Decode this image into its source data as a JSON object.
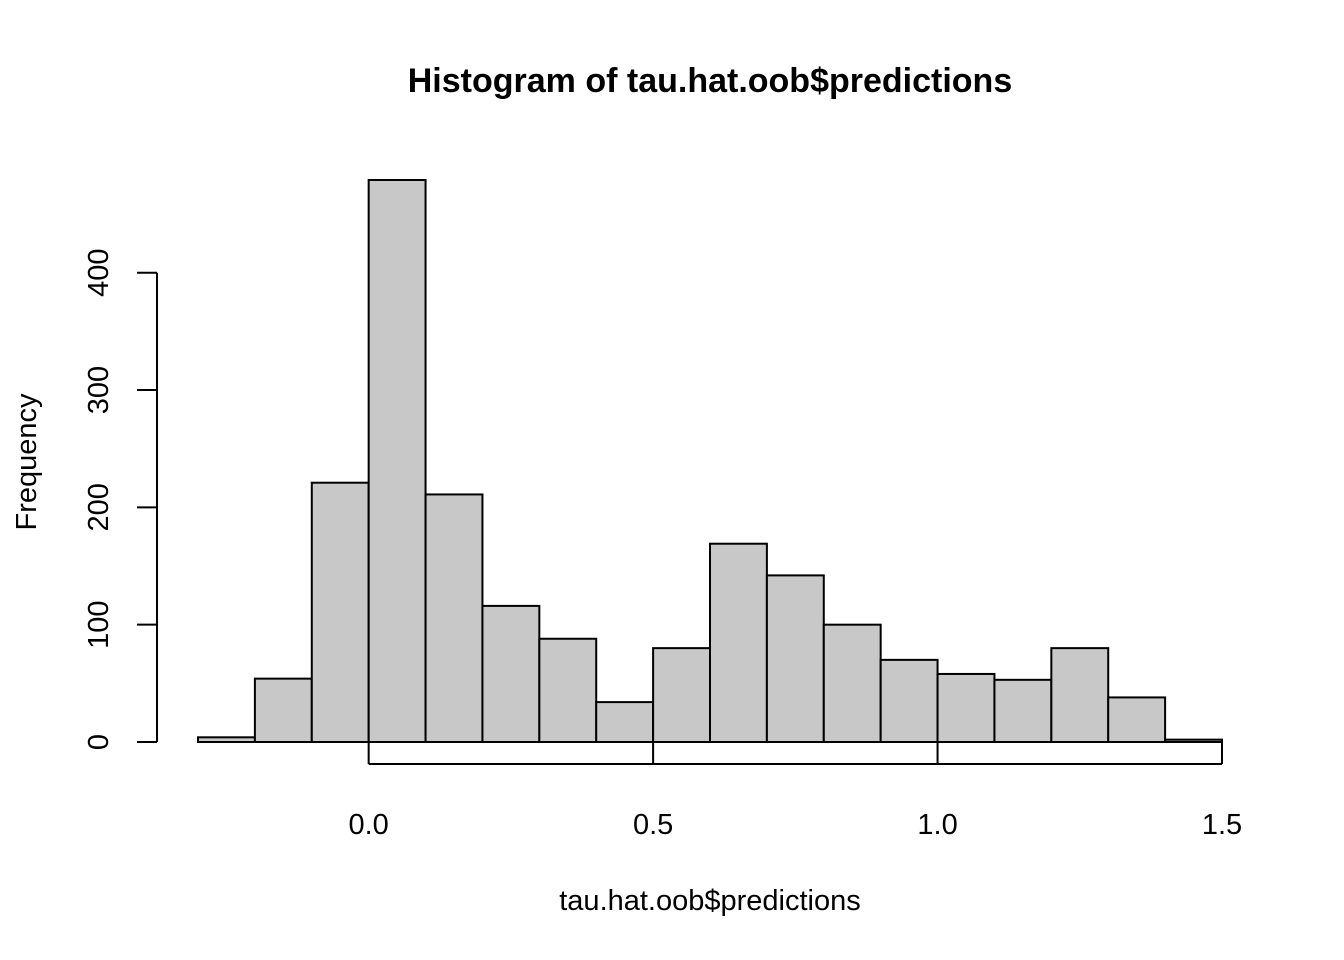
{
  "chart_data": {
    "type": "bar",
    "title": "Histogram of tau.hat.oob$predictions",
    "xlabel": "tau.hat.oob$predictions",
    "ylabel": "Frequency",
    "bins": [
      {
        "start": -0.3,
        "end": -0.2,
        "count": 4
      },
      {
        "start": -0.2,
        "end": -0.1,
        "count": 54
      },
      {
        "start": -0.1,
        "end": 0.0,
        "count": 221
      },
      {
        "start": 0.0,
        "end": 0.1,
        "count": 479
      },
      {
        "start": 0.1,
        "end": 0.2,
        "count": 211
      },
      {
        "start": 0.2,
        "end": 0.3,
        "count": 116
      },
      {
        "start": 0.3,
        "end": 0.4,
        "count": 88
      },
      {
        "start": 0.4,
        "end": 0.5,
        "count": 34
      },
      {
        "start": 0.5,
        "end": 0.6,
        "count": 80
      },
      {
        "start": 0.6,
        "end": 0.7,
        "count": 169
      },
      {
        "start": 0.7,
        "end": 0.8,
        "count": 142
      },
      {
        "start": 0.8,
        "end": 0.9,
        "count": 100
      },
      {
        "start": 0.9,
        "end": 1.0,
        "count": 70
      },
      {
        "start": 1.0,
        "end": 1.1,
        "count": 58
      },
      {
        "start": 1.1,
        "end": 1.2,
        "count": 53
      },
      {
        "start": 1.2,
        "end": 1.3,
        "count": 80
      },
      {
        "start": 1.3,
        "end": 1.4,
        "count": 38
      },
      {
        "start": 1.4,
        "end": 1.5,
        "count": 2
      }
    ],
    "x_ticks": [
      {
        "value": 0.0,
        "label": "0.0"
      },
      {
        "value": 0.5,
        "label": "0.5"
      },
      {
        "value": 1.0,
        "label": "1.0"
      },
      {
        "value": 1.5,
        "label": "1.5"
      }
    ],
    "y_ticks": [
      {
        "value": 0,
        "label": "0"
      },
      {
        "value": 100,
        "label": "100"
      },
      {
        "value": 200,
        "label": "200"
      },
      {
        "value": 300,
        "label": "300"
      },
      {
        "value": 400,
        "label": "400"
      }
    ],
    "xlim": [
      -0.3,
      1.5
    ],
    "ylim": [
      0,
      479
    ],
    "grid": false,
    "colors": {
      "bar_fill": "#c8c8c8",
      "bar_stroke": "#000000"
    }
  }
}
